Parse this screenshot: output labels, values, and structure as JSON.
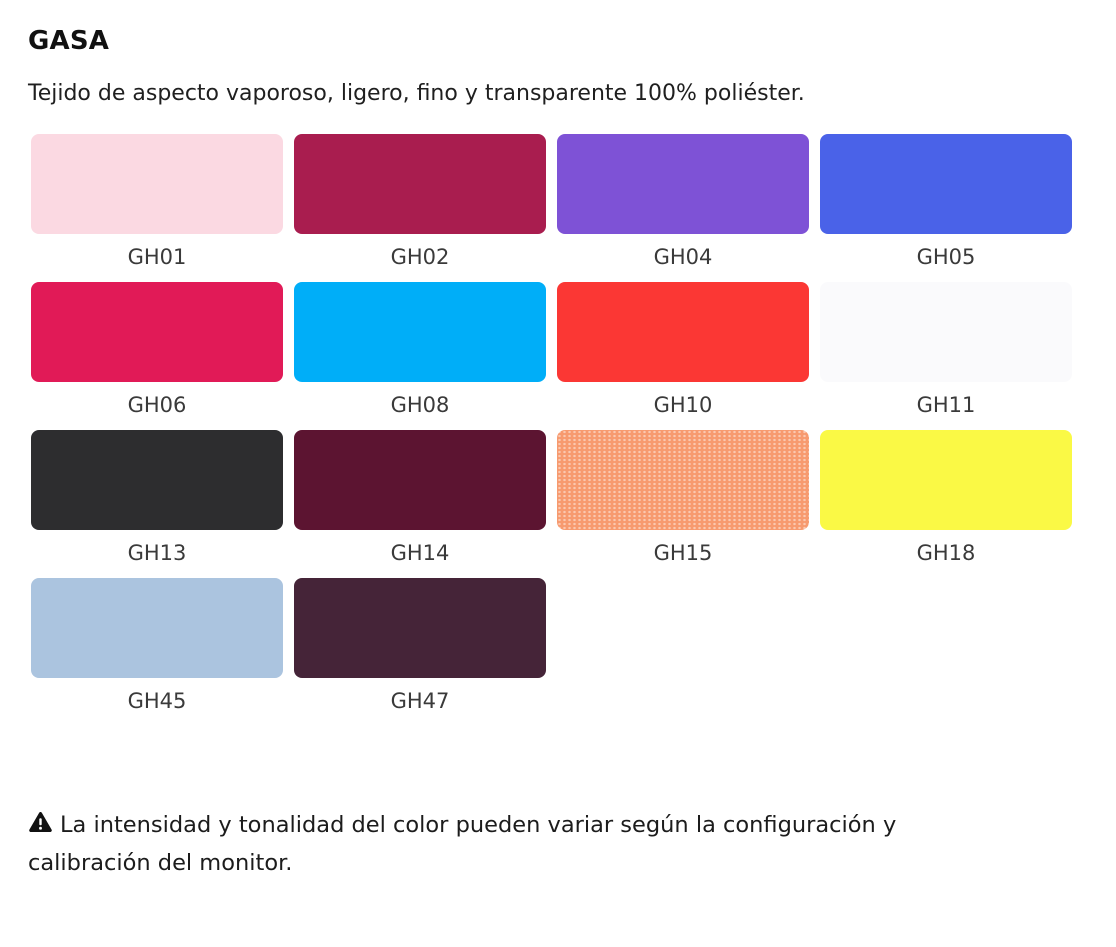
{
  "page": {
    "title": "GASA",
    "description": "Tejido de aspecto vaporoso, ligero, fino y transparente 100% poliéster.",
    "warning": {
      "icon": "warning-triangle-icon",
      "icon_color": "#111111",
      "text": "La intensidad y tonalidad del color pueden variar según la configuración y calibración del monitor."
    },
    "background_color": "#ffffff",
    "label_color": "#3a3a3a"
  },
  "swatches": [
    {
      "code": "GH01",
      "color": "#fbd9e2"
    },
    {
      "code": "GH02",
      "color": "#a91d4f"
    },
    {
      "code": "GH04",
      "color": "#7e52d6"
    },
    {
      "code": "GH05",
      "color": "#4a62e8"
    },
    {
      "code": "GH06",
      "color": "#e11a57"
    },
    {
      "code": "GH08",
      "color": "#00aef8"
    },
    {
      "code": "GH10",
      "color": "#fb3734"
    },
    {
      "code": "GH11",
      "color": "#fafafc"
    },
    {
      "code": "GH13",
      "color": "#2d2d2f"
    },
    {
      "code": "GH14",
      "color": "#5c1431"
    },
    {
      "code": "GH15",
      "color": "#f79a6f",
      "texture": "mesh"
    },
    {
      "code": "GH18",
      "color": "#faf945"
    },
    {
      "code": "GH45",
      "color": "#abc4df"
    },
    {
      "code": "GH47",
      "color": "#452438"
    }
  ]
}
